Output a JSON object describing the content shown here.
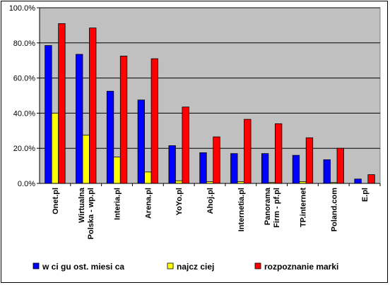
{
  "chart_data": {
    "type": "bar",
    "title": "",
    "xlabel": "",
    "ylabel": "",
    "ylim": [
      0,
      100
    ],
    "y_ticks": [
      "0.0%",
      "20.0%",
      "40.0%",
      "60.0%",
      "80.0%",
      "100.0%"
    ],
    "y_tick_values": [
      0,
      20,
      40,
      60,
      80,
      100
    ],
    "grid": true,
    "legend_position": "bottom",
    "plot_background": "#c0c0c0",
    "categories": [
      [
        "Onet.pl"
      ],
      [
        "Wirtualna",
        "Polska - wp.pl"
      ],
      [
        "Interia.pl"
      ],
      [
        "Arena.pl"
      ],
      [
        "YoYo.pl"
      ],
      [
        "Ahoj.pl"
      ],
      [
        "Internetia.pl"
      ],
      [
        "Panorama",
        "Firm - pf.pl"
      ],
      [
        "TP.internet"
      ],
      [
        "Poland.com"
      ],
      [
        "E.pl"
      ]
    ],
    "series": [
      {
        "name": "w ci gu ost. miesi ca",
        "color": "#0000ff",
        "values": [
          78.5,
          73.5,
          52.5,
          47.5,
          21.5,
          17.5,
          17.0,
          17.0,
          16.0,
          13.5,
          2.5
        ]
      },
      {
        "name": "najcz ciej",
        "color": "#ffff00",
        "values": [
          40.0,
          27.5,
          15.0,
          6.5,
          1.5,
          1.0,
          1.0,
          0.5,
          1.0,
          0.5,
          0.0
        ]
      },
      {
        "name": "rozpoznanie marki",
        "color": "#ff0000",
        "values": [
          91.0,
          88.5,
          72.5,
          71.0,
          43.5,
          26.5,
          36.5,
          34.0,
          26.0,
          20.0,
          5.0
        ]
      }
    ]
  }
}
